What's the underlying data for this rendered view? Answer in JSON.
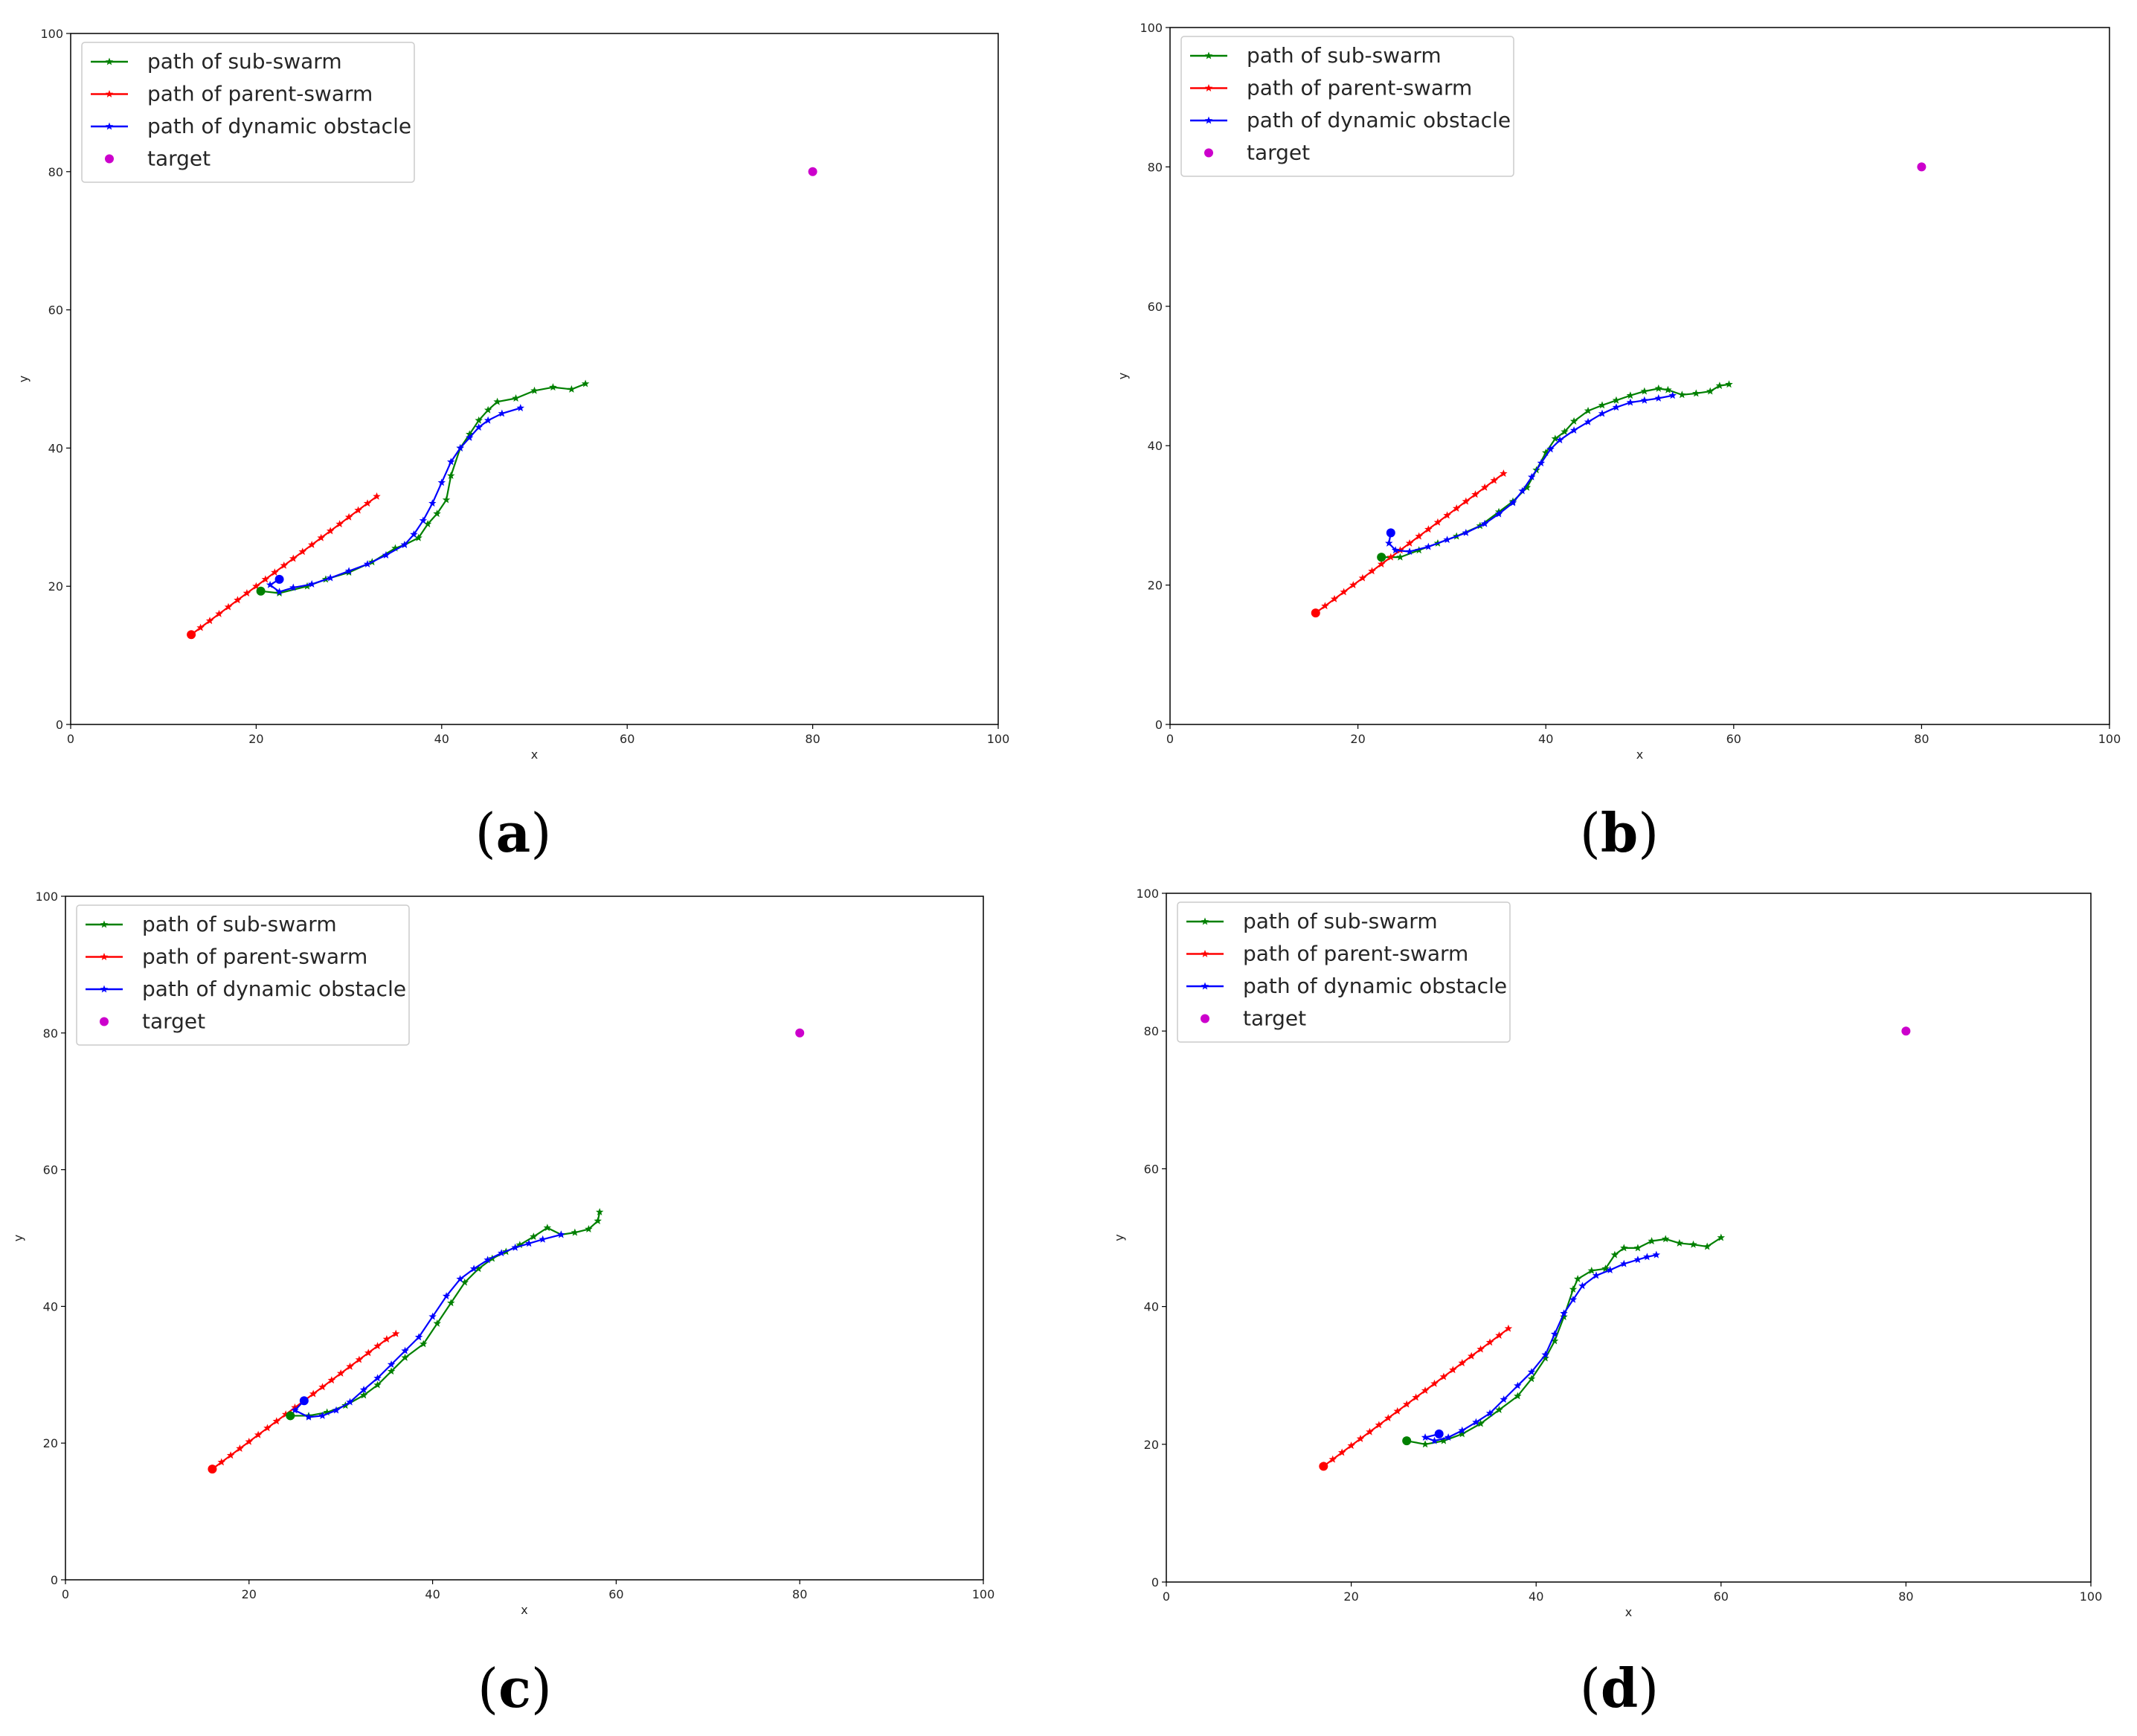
{
  "chart_data": [
    {
      "type": "line",
      "panel_label": "(a)",
      "panel_letter": "a",
      "xlabel": "x",
      "ylabel": "y",
      "xlim": [
        0,
        100
      ],
      "ylim": [
        0,
        100
      ],
      "xticks": [
        0,
        20,
        40,
        60,
        80,
        100
      ],
      "yticks": [
        0,
        20,
        40,
        60,
        80,
        100
      ],
      "legend_position": "upper-left",
      "series": [
        {
          "name": "path of sub-swarm",
          "color": "#008000",
          "marker": "star",
          "x": [
            20.5,
            22.5,
            25.5,
            27.5,
            30,
            32.5,
            35,
            36,
            37.5,
            38.5,
            39.5,
            40.5,
            41,
            42,
            43,
            44,
            45,
            46,
            48,
            50,
            52,
            54,
            55.5
          ],
          "y": [
            19.3,
            19.0,
            20.0,
            21.0,
            22.0,
            23.5,
            25.5,
            26.0,
            27.0,
            29.0,
            30.5,
            32.5,
            36,
            40,
            42,
            44,
            45.5,
            46.7,
            47.2,
            48.3,
            48.8,
            48.5,
            49.3
          ]
        },
        {
          "name": "path of parent-swarm",
          "color": "#ff0000",
          "marker": "star",
          "x": [
            13,
            14,
            15,
            16,
            17,
            18,
            19,
            20,
            21,
            22,
            23,
            24,
            25,
            26,
            27,
            28,
            29,
            30,
            31,
            32,
            33
          ],
          "y": [
            13.0,
            14.0,
            15.0,
            16.0,
            17.0,
            18.0,
            19.0,
            20.0,
            21.0,
            22.0,
            23.0,
            24.0,
            25.0,
            26.0,
            27.0,
            28.0,
            29.0,
            30.0,
            31.0,
            32.0,
            33.0
          ]
        },
        {
          "name": "path of dynamic obstacle",
          "color": "#0000ff",
          "marker": "star",
          "x": [
            22.5,
            21.5,
            22.5,
            24,
            26,
            28,
            30,
            32,
            34,
            36,
            37,
            38,
            39,
            40,
            41,
            42,
            43,
            44,
            45,
            46.5,
            48.5
          ],
          "y": [
            21.0,
            20.2,
            19.2,
            19.8,
            20.3,
            21.2,
            22.2,
            23.2,
            24.5,
            26.0,
            27.5,
            29.5,
            32.0,
            35.0,
            38.0,
            40.0,
            41.5,
            43.0,
            44.0,
            45.0,
            45.8
          ]
        }
      ],
      "start_markers": [
        {
          "series": "path of sub-swarm",
          "x": 20.5,
          "y": 19.3,
          "color": "#008000"
        },
        {
          "series": "path of parent-swarm",
          "x": 13,
          "y": 13.0,
          "color": "#ff0000"
        },
        {
          "series": "path of dynamic obstacle",
          "x": 22.5,
          "y": 21.0,
          "color": "#0000ff"
        }
      ],
      "target": {
        "label": "target",
        "x": 80,
        "y": 80,
        "color": "#cc00cc"
      }
    },
    {
      "type": "line",
      "panel_label": "(b)",
      "panel_letter": "b",
      "xlabel": "x",
      "ylabel": "y",
      "xlim": [
        0,
        100
      ],
      "ylim": [
        0,
        100
      ],
      "xticks": [
        0,
        20,
        40,
        60,
        80,
        100
      ],
      "yticks": [
        0,
        20,
        40,
        60,
        80,
        100
      ],
      "legend_position": "upper-left",
      "series": [
        {
          "name": "path of sub-swarm",
          "color": "#008000",
          "marker": "star",
          "x": [
            22.5,
            24.5,
            26.5,
            28.5,
            30.5,
            33,
            35,
            36.5,
            38,
            39,
            40,
            41,
            42,
            43,
            44.5,
            46,
            47.5,
            49,
            50.5,
            52,
            53,
            54.5,
            56,
            57.5,
            58.5,
            59.5
          ],
          "y": [
            24.0,
            24.0,
            25.0,
            26.0,
            27.0,
            28.5,
            30.5,
            32.0,
            34.0,
            36.5,
            39.0,
            41.0,
            42.0,
            43.5,
            45.0,
            45.8,
            46.5,
            47.2,
            47.8,
            48.2,
            48.0,
            47.3,
            47.5,
            47.8,
            48.6,
            48.8
          ]
        },
        {
          "name": "path of parent-swarm",
          "color": "#ff0000",
          "marker": "star",
          "x": [
            15.5,
            16.5,
            17.5,
            18.5,
            19.5,
            20.5,
            21.5,
            22.5,
            23.5,
            24.5,
            25.5,
            26.5,
            27.5,
            28.5,
            29.5,
            30.5,
            31.5,
            32.5,
            33.5,
            34.5,
            35.5
          ],
          "y": [
            16.0,
            17.0,
            18.0,
            19.0,
            20.0,
            21.0,
            22.0,
            23.0,
            24.0,
            25.0,
            26.0,
            27.0,
            28.0,
            29.0,
            30.0,
            31.0,
            32.0,
            33.0,
            34.0,
            35.0,
            36.0
          ]
        },
        {
          "name": "path of dynamic obstacle",
          "color": "#0000ff",
          "marker": "star",
          "x": [
            23.5,
            23.3,
            24,
            25.5,
            27.5,
            29.5,
            31.5,
            33.5,
            35,
            36.5,
            37.5,
            38.5,
            39.5,
            40.5,
            41.5,
            43,
            44.5,
            46,
            47.5,
            49,
            50.5,
            52,
            53.5
          ],
          "y": [
            27.5,
            26.0,
            25.0,
            24.8,
            25.5,
            26.5,
            27.5,
            28.8,
            30.2,
            31.8,
            33.5,
            35.5,
            37.5,
            39.5,
            40.8,
            42.2,
            43.4,
            44.6,
            45.5,
            46.2,
            46.5,
            46.8,
            47.2
          ]
        }
      ],
      "start_markers": [
        {
          "series": "path of sub-swarm",
          "x": 22.5,
          "y": 24.0,
          "color": "#008000"
        },
        {
          "series": "path of parent-swarm",
          "x": 15.5,
          "y": 16.0,
          "color": "#ff0000"
        },
        {
          "series": "path of dynamic obstacle",
          "x": 23.5,
          "y": 27.5,
          "color": "#0000ff"
        }
      ],
      "target": {
        "label": "target",
        "x": 80,
        "y": 80,
        "color": "#cc00cc"
      }
    },
    {
      "type": "line",
      "panel_label": "(c)",
      "panel_letter": "c",
      "xlabel": "x",
      "ylabel": "y",
      "xlim": [
        0,
        100
      ],
      "ylim": [
        0,
        100
      ],
      "xticks": [
        0,
        20,
        40,
        60,
        80,
        100
      ],
      "yticks": [
        0,
        20,
        40,
        60,
        80,
        100
      ],
      "legend_position": "upper-left",
      "series": [
        {
          "name": "path of sub-swarm",
          "color": "#008000",
          "marker": "star",
          "x": [
            24.5,
            26.5,
            28.5,
            30.5,
            32.5,
            34,
            35.5,
            37,
            39,
            40.5,
            42,
            43.5,
            45,
            46.5,
            48,
            49.5,
            51,
            52.5,
            54,
            55.5,
            57,
            58,
            58.2
          ],
          "y": [
            24.0,
            24.0,
            24.5,
            25.5,
            27.0,
            28.5,
            30.5,
            32.5,
            34.5,
            37.5,
            40.5,
            43.5,
            45.5,
            47.0,
            48.0,
            49.0,
            50.2,
            51.5,
            50.5,
            50.8,
            51.3,
            52.5,
            53.8
          ]
        },
        {
          "name": "path of parent-swarm",
          "color": "#ff0000",
          "marker": "star",
          "x": [
            16,
            17,
            18,
            19,
            20,
            21,
            22,
            23,
            24,
            25,
            26,
            27,
            28,
            29,
            30,
            31,
            32,
            33,
            34,
            35,
            36
          ],
          "y": [
            16.2,
            17.2,
            18.2,
            19.2,
            20.2,
            21.2,
            22.2,
            23.2,
            24.2,
            25.2,
            26.2,
            27.2,
            28.2,
            29.2,
            30.2,
            31.2,
            32.2,
            33.2,
            34.2,
            35.2,
            36.0
          ]
        },
        {
          "name": "path of dynamic obstacle",
          "color": "#0000ff",
          "marker": "star",
          "x": [
            26,
            25,
            26.5,
            28,
            29.5,
            31,
            32.5,
            34,
            35.5,
            37,
            38.5,
            40,
            41.5,
            43,
            44.5,
            46,
            47.5,
            49,
            50.5,
            52,
            54
          ],
          "y": [
            26.2,
            24.8,
            23.8,
            24.0,
            24.8,
            26.0,
            27.8,
            29.5,
            31.5,
            33.5,
            35.5,
            38.5,
            41.5,
            44.0,
            45.5,
            46.8,
            47.8,
            48.6,
            49.2,
            49.8,
            50.5
          ]
        }
      ],
      "start_markers": [
        {
          "series": "path of sub-swarm",
          "x": 24.5,
          "y": 24.0,
          "color": "#008000"
        },
        {
          "series": "path of parent-swarm",
          "x": 16,
          "y": 16.2,
          "color": "#ff0000"
        },
        {
          "series": "path of dynamic obstacle",
          "x": 26,
          "y": 26.2,
          "color": "#0000ff"
        }
      ],
      "target": {
        "label": "target",
        "x": 80,
        "y": 80,
        "color": "#cc00cc"
      }
    },
    {
      "type": "line",
      "panel_label": "(d)",
      "panel_letter": "d",
      "xlabel": "x",
      "ylabel": "y",
      "xlim": [
        0,
        100
      ],
      "ylim": [
        0,
        100
      ],
      "xticks": [
        0,
        20,
        40,
        60,
        80,
        100
      ],
      "yticks": [
        0,
        20,
        40,
        60,
        80,
        100
      ],
      "legend_position": "upper-left",
      "series": [
        {
          "name": "path of sub-swarm",
          "color": "#008000",
          "marker": "star",
          "x": [
            26,
            28,
            30,
            32,
            34,
            36,
            38,
            39.5,
            41,
            42,
            43,
            44,
            44.5,
            46,
            47.5,
            48.5,
            49.5,
            51,
            52.5,
            54,
            55.5,
            57,
            58.5,
            60
          ],
          "y": [
            20.5,
            20.0,
            20.5,
            21.5,
            23.0,
            25.0,
            27.0,
            29.5,
            32.5,
            35.0,
            38.5,
            42.5,
            44.0,
            45.2,
            45.5,
            47.5,
            48.5,
            48.5,
            49.5,
            49.8,
            49.2,
            49.0,
            48.7,
            50.0
          ]
        },
        {
          "name": "path of parent-swarm",
          "color": "#ff0000",
          "marker": "star",
          "x": [
            17,
            18,
            19,
            20,
            21,
            22,
            23,
            24,
            25,
            26,
            27,
            28,
            29,
            30,
            31,
            32,
            33,
            34,
            35,
            36,
            37
          ],
          "y": [
            16.8,
            17.8,
            18.8,
            19.8,
            20.8,
            21.8,
            22.8,
            23.8,
            24.8,
            25.8,
            26.8,
            27.8,
            28.8,
            29.8,
            30.8,
            31.8,
            32.8,
            33.8,
            34.8,
            35.8,
            36.8
          ]
        },
        {
          "name": "path of dynamic obstacle",
          "color": "#0000ff",
          "marker": "star",
          "x": [
            29.5,
            28,
            29,
            30.5,
            32,
            33.5,
            35,
            36.5,
            38,
            39.5,
            41,
            42,
            43,
            44,
            45,
            46.5,
            48,
            49.5,
            51,
            52,
            53
          ],
          "y": [
            21.5,
            21.0,
            20.5,
            21.0,
            22.0,
            23.2,
            24.5,
            26.5,
            28.5,
            30.5,
            33.0,
            36.0,
            39.0,
            41.0,
            43.0,
            44.5,
            45.3,
            46.2,
            46.8,
            47.2,
            47.5
          ]
        }
      ],
      "start_markers": [
        {
          "series": "path of sub-swarm",
          "x": 26,
          "y": 20.5,
          "color": "#008000"
        },
        {
          "series": "path of parent-swarm",
          "x": 17,
          "y": 16.8,
          "color": "#ff0000"
        },
        {
          "series": "path of dynamic obstacle",
          "x": 29.5,
          "y": 21.5,
          "color": "#0000ff"
        }
      ],
      "target": {
        "label": "target",
        "x": 80,
        "y": 80,
        "color": "#cc00cc"
      }
    }
  ]
}
